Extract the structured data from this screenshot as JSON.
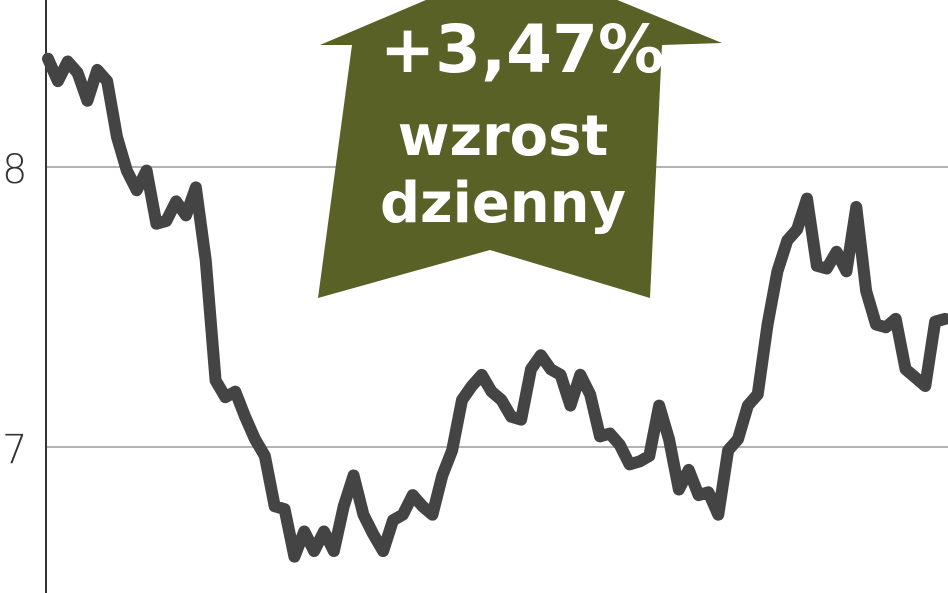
{
  "chart_data": {
    "type": "line",
    "title": "",
    "xlabel": "",
    "ylabel": "",
    "ylim": [
      6.48,
      8.6
    ],
    "yticks": [
      7,
      8
    ],
    "ytick_labels": [
      "7",
      "8"
    ],
    "grid": "horizontal",
    "line_color": "#444444",
    "series": [
      {
        "values": [
          8.39,
          8.31,
          8.38,
          8.34,
          8.24,
          8.35,
          8.31,
          8.11,
          7.99,
          7.92,
          7.99,
          7.8,
          7.81,
          7.88,
          7.83,
          7.93,
          7.67,
          7.24,
          7.18,
          7.2,
          7.11,
          7.03,
          6.97,
          6.79,
          6.78,
          6.61,
          6.7,
          6.63,
          6.7,
          6.63,
          6.79,
          6.9,
          6.76,
          6.69,
          6.63,
          6.74,
          6.76,
          6.83,
          6.79,
          6.76,
          6.9,
          6.99,
          7.17,
          7.22,
          7.26,
          7.2,
          7.17,
          7.11,
          7.1,
          7.28,
          7.33,
          7.28,
          7.26,
          7.15,
          7.26,
          7.19,
          7.04,
          7.05,
          7.01,
          6.94,
          6.95,
          6.97,
          7.15,
          7.03,
          6.85,
          6.92,
          6.83,
          6.84,
          6.76,
          6.99,
          7.03,
          7.15,
          7.19,
          7.44,
          7.63,
          7.74,
          7.78,
          7.89,
          7.65,
          7.64,
          7.7,
          7.63,
          7.86,
          7.56,
          7.44,
          7.43,
          7.46,
          7.28,
          7.25,
          7.22,
          7.45,
          7.46
        ]
      }
    ],
    "annotation": {
      "value": "+3,47%",
      "line1": "wzrost",
      "line2": "dzienny",
      "color": "#5a6127",
      "direction": "up"
    }
  }
}
